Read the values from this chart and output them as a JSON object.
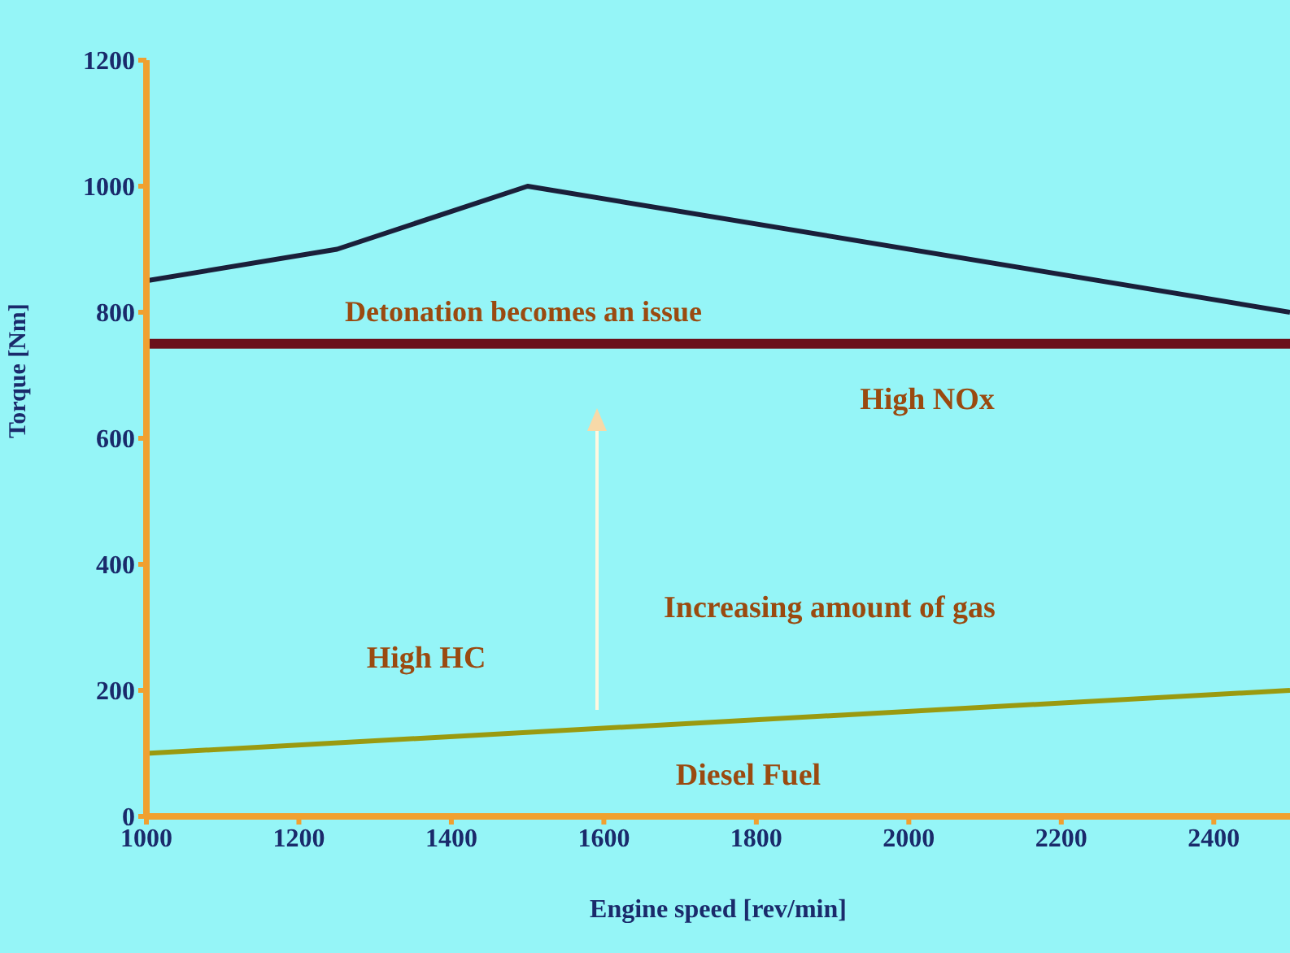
{
  "chart_data": {
    "type": "line",
    "xlabel": "Engine speed [rev/min]",
    "ylabel": "Torque [Nm]",
    "series": [
      {
        "color": "#1a1f3a",
        "x": [
          1000,
          1250,
          1500,
          2500
        ],
        "values": [
          850,
          900,
          1000,
          800
        ]
      },
      {
        "color": "#9a9a10",
        "x": [
          1000,
          2500
        ],
        "values": [
          100,
          200
        ]
      }
    ],
    "xlim": [
      1000,
      2500
    ],
    "xticks": [
      1000,
      1200,
      1400,
      1600,
      1800,
      2000,
      2200,
      2400
    ],
    "ylim": [
      0,
      1200
    ],
    "yticks": [
      0,
      200,
      400,
      600,
      800,
      1000,
      1200
    ],
    "ref_lines": [
      {
        "axis": "y",
        "value": 750,
        "color": "#6b0f1a",
        "label": "Detonation becomes an issue"
      }
    ],
    "annotations": [
      "High NOx",
      "Increasing amount of gas",
      "High HC",
      "Diesel Fuel"
    ],
    "grid": false,
    "marker": "none",
    "line_style": "solid"
  }
}
